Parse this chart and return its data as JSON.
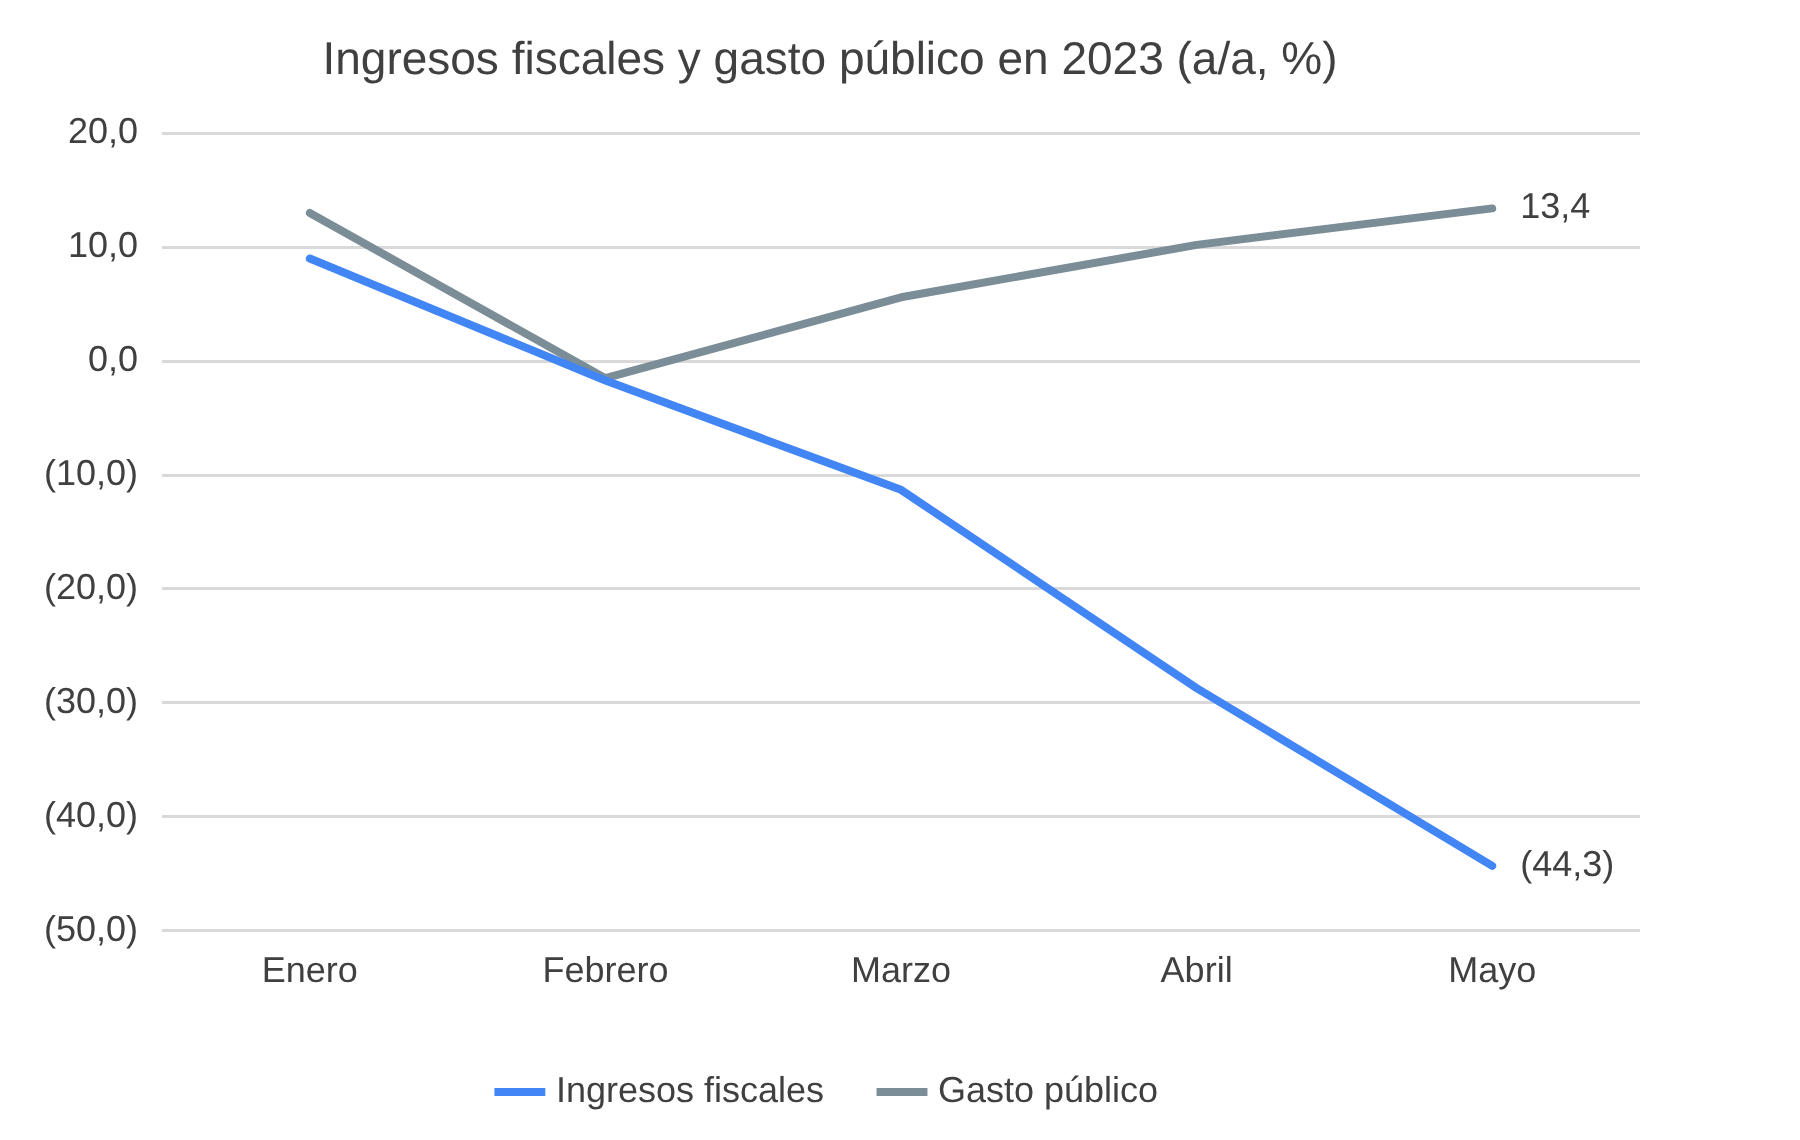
{
  "chart_data": {
    "type": "line",
    "title": "Ingresos fiscales y gasto público en 2023 (a/a, %)",
    "categories": [
      "Enero",
      "Febrero",
      "Marzo",
      "Abril",
      "Mayo"
    ],
    "series": [
      {
        "name": "Ingresos fiscales",
        "color": "#4285f4",
        "values": [
          9.0,
          -1.7,
          -11.3,
          -28.7,
          -44.3
        ],
        "value_labels": [
          null,
          null,
          null,
          null,
          "(44,3)"
        ]
      },
      {
        "name": "Gasto público",
        "color": "#7b8d97",
        "values": [
          13.0,
          -1.5,
          5.6,
          10.2,
          13.4
        ],
        "value_labels": [
          null,
          null,
          null,
          null,
          "13,4"
        ]
      }
    ],
    "ylim": [
      -50,
      20
    ],
    "yticks": [
      {
        "value": -50,
        "label": "(50,0)"
      },
      {
        "value": -40,
        "label": "(40,0)"
      },
      {
        "value": -30,
        "label": "(30,0)"
      },
      {
        "value": -20,
        "label": "(20,0)"
      },
      {
        "value": -10,
        "label": "(10,0)"
      },
      {
        "value": 0,
        "label": "0,0"
      },
      {
        "value": 10,
        "label": "10,0"
      },
      {
        "value": 20,
        "label": "20,0"
      }
    ],
    "grid": "y",
    "legend": "bottom",
    "marker": "none",
    "line_style": "solid"
  }
}
